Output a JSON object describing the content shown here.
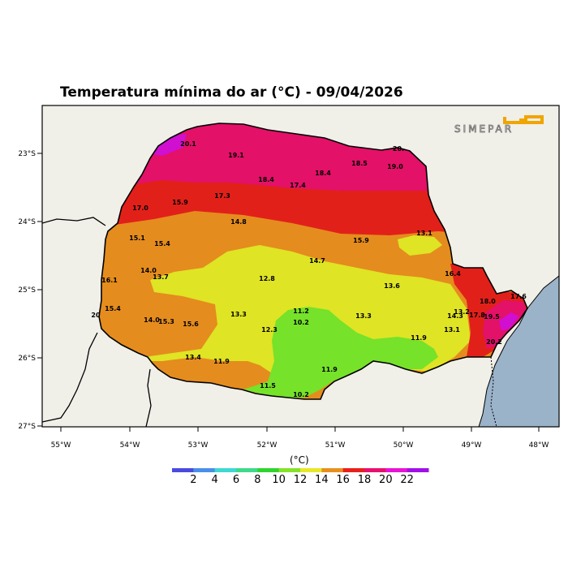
{
  "title": "Temperatura mínima do ar (°C) - 09/04/2026",
  "brand": "SIMEPAR",
  "lat_labels": [
    "23°S",
    "24°S",
    "25°S",
    "26°S",
    "27°S"
  ],
  "lon_labels": [
    "55°W",
    "54°W",
    "53°W",
    "52°W",
    "51°W",
    "50°W",
    "49°W",
    "48°W"
  ],
  "colorbar": {
    "unit": "(°C)",
    "labels": [
      "2",
      "4",
      "6",
      "8",
      "10",
      "12",
      "14",
      "16",
      "18",
      "20",
      "22"
    ],
    "colors": [
      "#4a4adf",
      "#4a8fe8",
      "#3fd9d3",
      "#3fd98a",
      "#2fd42f",
      "#86e22a",
      "#e8e82a",
      "#e8901e",
      "#e8201a",
      "#e8106e",
      "#e814d4",
      "#a010e8"
    ]
  },
  "region_colors": {
    "magenta_red": "#e31168",
    "red": "#e2201a",
    "orange": "#e58c1e",
    "yellow": "#dfe424",
    "green": "#76e22a",
    "purple": "#d10fd1",
    "ocean": "#9ab3c9",
    "land": "#f0efe8"
  },
  "station_values": [
    {
      "v": "20.1"
    },
    {
      "v": "19.1"
    },
    {
      "v": "20."
    },
    {
      "v": "18.5"
    },
    {
      "v": "19.0"
    },
    {
      "v": "18.4"
    },
    {
      "v": "18.4"
    },
    {
      "v": "17.4"
    },
    {
      "v": "17.3"
    },
    {
      "v": "17.0"
    },
    {
      "v": "15.9"
    },
    {
      "v": "14.8"
    },
    {
      "v": "15.1"
    },
    {
      "v": "15.4"
    },
    {
      "v": "13.1"
    },
    {
      "v": "15.9"
    },
    {
      "v": "14.7"
    },
    {
      "v": "14.0"
    },
    {
      "v": "13.7"
    },
    {
      "v": "16.1"
    },
    {
      "v": "12.8"
    },
    {
      "v": "16.4"
    },
    {
      "v": "13.6"
    },
    {
      "v": "15.4"
    },
    {
      "v": "20"
    },
    {
      "v": "11.2"
    },
    {
      "v": "10.2"
    },
    {
      "v": "13.3"
    },
    {
      "v": "13.3"
    },
    {
      "v": "14.0"
    },
    {
      "v": "15.3"
    },
    {
      "v": "15.6"
    },
    {
      "v": "12.3"
    },
    {
      "v": "18.0"
    },
    {
      "v": "17.6"
    },
    {
      "v": "13.2"
    },
    {
      "v": "14.3"
    },
    {
      "v": "17.8"
    },
    {
      "v": "19.5"
    },
    {
      "v": "13.1"
    },
    {
      "v": "11.9"
    },
    {
      "v": "20.2"
    },
    {
      "v": "13.4"
    },
    {
      "v": "11.9"
    },
    {
      "v": "11.9"
    },
    {
      "v": "11.5"
    },
    {
      "v": "10.2"
    }
  ]
}
